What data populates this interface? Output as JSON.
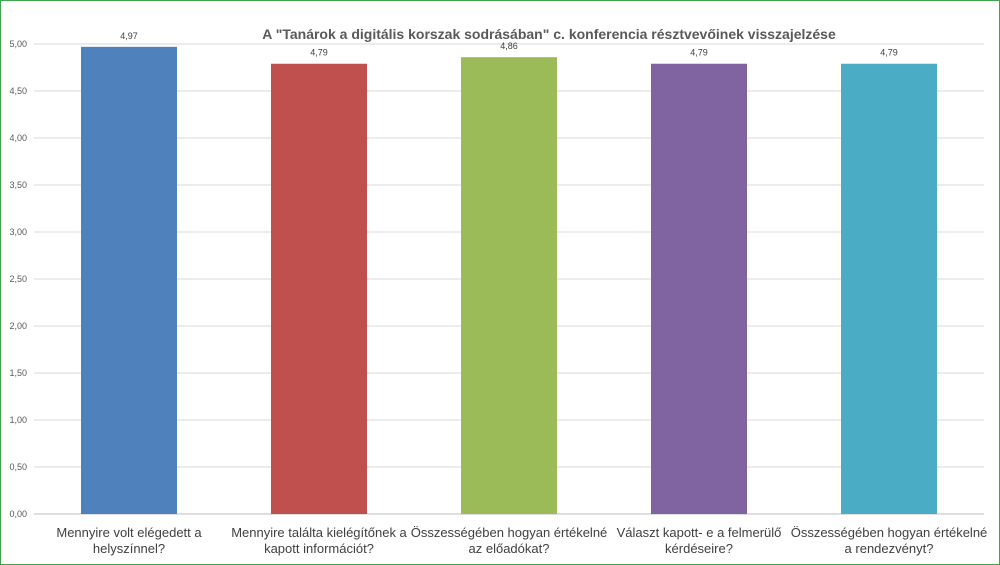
{
  "chart_data": {
    "type": "bar",
    "title": "A \"Tanárok a digitális korszak sodrásában\" c.  konferencia résztvevőinek visszajelzése",
    "categories": [
      [
        "Mennyire volt elégedett a",
        "helyszínnel?"
      ],
      [
        "Mennyire találta kielégítőnek a",
        "kapott információt?"
      ],
      [
        "Összességében hogyan értékelné",
        "az előadókat?"
      ],
      [
        "Választ kapott- e a felmerülő",
        "kérdéseire?"
      ],
      [
        "Összességében hogyan értékelné",
        "a rendezvényt?"
      ]
    ],
    "values": [
      4.97,
      4.79,
      4.86,
      4.79,
      4.79
    ],
    "value_labels": [
      "4,97",
      "4,79",
      "4,86",
      "4,79",
      "4,79"
    ],
    "colors": [
      "#4f81bd",
      "#c0504d",
      "#9bbb59",
      "#8064a2",
      "#4bacc6"
    ],
    "ylim": [
      0,
      5
    ],
    "yticks": [
      0,
      0.5,
      1,
      1.5,
      2,
      2.5,
      3,
      3.5,
      4,
      4.5,
      5
    ],
    "ytick_labels": [
      "0,00",
      "0,50",
      "1,00",
      "1,50",
      "2,00",
      "2,50",
      "3,00",
      "3,50",
      "4,00",
      "4,50",
      "5,00"
    ],
    "xlabel": "",
    "ylabel": "",
    "grid": true,
    "legend": "none"
  }
}
